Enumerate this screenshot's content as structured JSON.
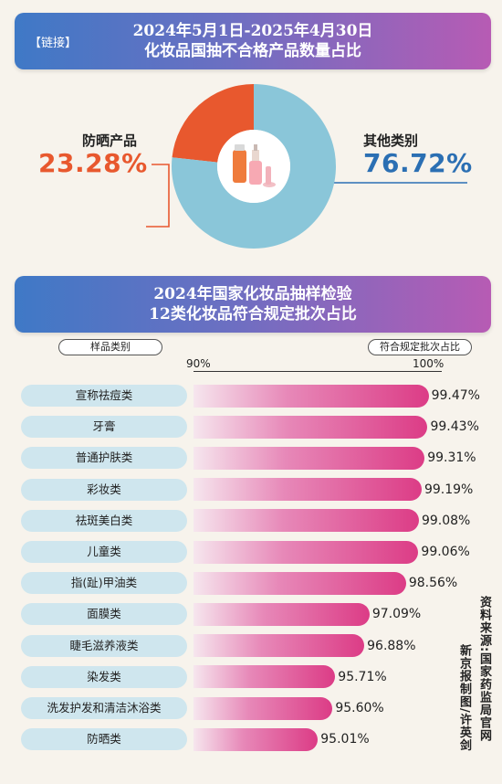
{
  "banner1": {
    "tag": "【链接】",
    "line1": "2024年5月1日-2025年4月30日",
    "line2": "化妆品国抽不合格产品数量占比"
  },
  "donut": {
    "left": {
      "name": "防晒产品",
      "percent": "23.28%",
      "color": "#e8582e"
    },
    "right": {
      "name": "其他类别",
      "percent": "76.72%",
      "color": "#8ac6d9"
    }
  },
  "banner2": {
    "line1": "2024年国家化妆品抽样检验",
    "line2": "12类化妆品符合规定批次占比"
  },
  "table": {
    "category_header": "样品类别",
    "value_header": "符合规定批次占比",
    "tick_min": "90%",
    "tick_max": "100%"
  },
  "chart_data": {
    "type": "bar",
    "orientation": "horizontal",
    "title": "12类化妆品符合规定批次占比",
    "categories": [
      "宣称祛痘类",
      "牙膏",
      "普通护肤类",
      "彩妆类",
      "祛斑美白类",
      "儿童类",
      "指(趾)甲油类",
      "面膜类",
      "睫毛滋养液类",
      "染发类",
      "洗发护发和清洁沐浴类",
      "防晒类"
    ],
    "values": [
      99.47,
      99.43,
      99.31,
      99.19,
      99.08,
      99.06,
      98.56,
      97.09,
      96.88,
      95.71,
      95.6,
      95.01
    ],
    "labels": [
      "99.47%",
      "99.43%",
      "99.31%",
      "99.19%",
      "99.08%",
      "99.06%",
      "98.56%",
      "97.09%",
      "96.88%",
      "95.71%",
      "95.60%",
      "95.01%"
    ],
    "xlim": [
      90,
      100
    ],
    "pie": {
      "type": "pie",
      "categories": [
        "防晒产品",
        "其他类别"
      ],
      "values": [
        23.28,
        76.72
      ]
    }
  },
  "source": {
    "col1": "资料来源:国家药监局官网",
    "col2": "新京报制图/许英剑"
  }
}
